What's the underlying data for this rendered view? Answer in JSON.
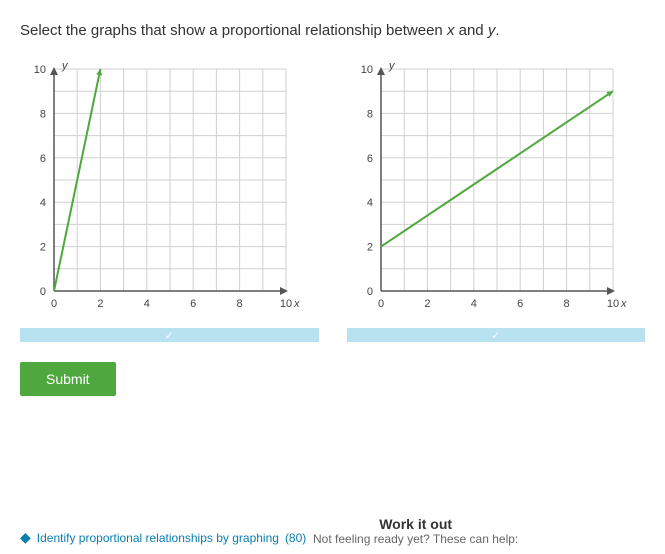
{
  "question_prefix": "Select the graphs that show a proportional relationship between ",
  "question_var1": "x",
  "question_mid": " and ",
  "question_var2": "y",
  "question_suffix": ".",
  "submit_label": "Submit",
  "skill_link_text": "Identify proportional relationships by graphing",
  "skill_score": "(80)",
  "workout_title": "Work it out",
  "workout_sub": "Not feeling ready yet? These can help:",
  "chart_common": {
    "xlim": [
      0,
      10
    ],
    "ylim": [
      0,
      10
    ],
    "xticks": [
      0,
      2,
      4,
      6,
      8,
      10
    ],
    "yticks": [
      0,
      2,
      4,
      6,
      8,
      10
    ],
    "xlabel": "x",
    "ylabel": "y",
    "grid_color": "#d0d0d0",
    "axis_color": "#555555",
    "bg_color": "#ffffff",
    "label_fontsize": 11,
    "tick_fontsize": 11
  },
  "chart1": {
    "type": "line",
    "line_color": "#4fa83d",
    "line_width": 2,
    "points": [
      [
        0,
        0
      ],
      [
        2,
        10
      ]
    ],
    "selected": true
  },
  "chart2": {
    "type": "line",
    "line_color": "#4fa83d",
    "line_width": 2,
    "points": [
      [
        0,
        2
      ],
      [
        10,
        9
      ]
    ],
    "selected": true
  },
  "selectbar_color": "#b8e2f0",
  "submit_bg": "#4fa83d"
}
